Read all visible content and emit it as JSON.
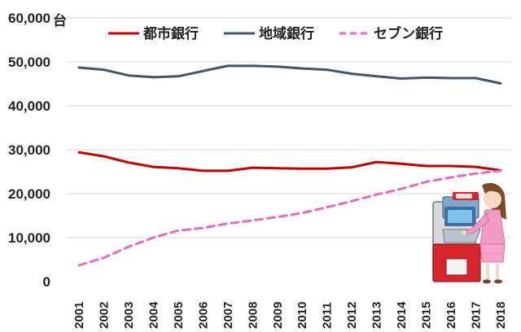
{
  "chart_data": {
    "type": "line",
    "unit_label": "台",
    "categories": [
      "2001",
      "2002",
      "2003",
      "2004",
      "2005",
      "2006",
      "2007",
      "2008",
      "2009",
      "2010",
      "2011",
      "2012",
      "2013",
      "2014",
      "2015",
      "2016",
      "2017",
      "2018"
    ],
    "ylim": [
      0,
      60000
    ],
    "y_ticks": [
      "0",
      "10,000",
      "20,000",
      "30,000",
      "40,000",
      "50,000",
      "60,000"
    ],
    "grid": true,
    "legend_position": "top",
    "series": [
      {
        "name": "都市銀行",
        "color": "#c00000",
        "dash": "solid",
        "values": [
          29400,
          28500,
          27100,
          26100,
          25800,
          25200,
          25200,
          25900,
          25800,
          25700,
          25700,
          26000,
          27200,
          26800,
          26300,
          26300,
          26100,
          25300
        ]
      },
      {
        "name": "地域銀行",
        "color": "#44546a",
        "dash": "solid",
        "values": [
          48700,
          48200,
          46900,
          46500,
          46700,
          47900,
          49100,
          49100,
          48900,
          48500,
          48200,
          47300,
          46700,
          46200,
          46400,
          46300,
          46300,
          45100
        ]
      },
      {
        "name": "セブン銀行",
        "color": "#e26bc4",
        "dash": "dashed",
        "values": [
          3700,
          5400,
          7900,
          10000,
          11600,
          12200,
          13200,
          13900,
          14700,
          15600,
          16900,
          18300,
          19800,
          21100,
          22700,
          23700,
          24600,
          25200
        ]
      }
    ]
  }
}
